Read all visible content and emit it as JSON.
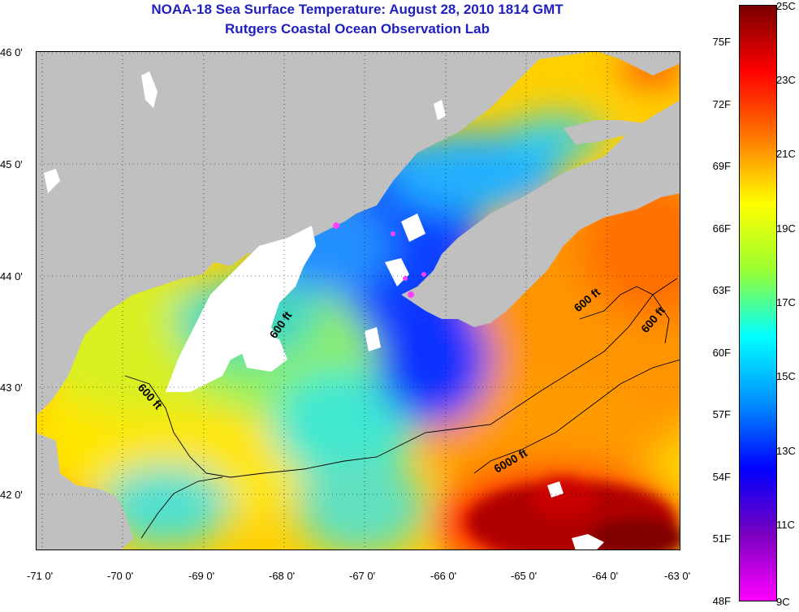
{
  "title": {
    "line1": "NOAA-18 Sea Surface Temperature:  August 28, 2010 1814 GMT",
    "line2": "Rutgers Coastal Ocean Observation Lab"
  },
  "axes": {
    "lat_labels": [
      "46 0'",
      "45 0'",
      "44 0'",
      "43 0'",
      "42 0'"
    ],
    "lon_labels": [
      "-71 0'",
      "-70 0'",
      "-69 0'",
      "-68 0'",
      "-67 0'",
      "-66 0'",
      "-65 0'",
      "-64 0'",
      "-63 0'"
    ]
  },
  "contours": [
    "600 ft",
    "600 ft",
    "600 ft",
    "600 ft",
    "6000 ft"
  ],
  "colorbar": {
    "fahrenheit": [
      "75F",
      "72F",
      "69F",
      "66F",
      "63F",
      "60F",
      "57F",
      "54F",
      "51F",
      "48F"
    ],
    "celsius": [
      "25C",
      "23C",
      "21C",
      "19C",
      "17C",
      "15C",
      "13C",
      "11C",
      "9C"
    ],
    "colors": [
      "#7a0000",
      "#ff0000",
      "#ff7a00",
      "#ffff00",
      "#9aff30",
      "#00ffff",
      "#0090ff",
      "#0000ff",
      "#7a00c0",
      "#ff00ff"
    ]
  },
  "colors": {
    "land": "#c0c0c0",
    "title": "#1f1fbf"
  }
}
